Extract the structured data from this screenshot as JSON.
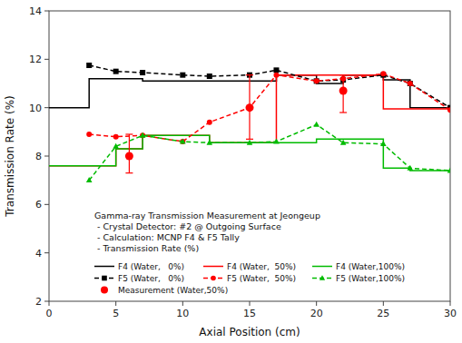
{
  "chart_data": {
    "type": "line",
    "xlabel": "Axial Position (cm)",
    "ylabel": "Transmission Rate (%)",
    "annotations": [
      "Gamma-ray Transmission Measurement at Jeongeup",
      " - Crystal Detector: #2 @ Outgoing Surface",
      " - Calculation: MCNP F4 & F5 Tally",
      " - Transmission Rate (%)"
    ],
    "xlim": [
      0,
      30
    ],
    "ylim": [
      2,
      14
    ],
    "xticks": [
      0,
      5,
      10,
      15,
      20,
      25,
      30
    ],
    "yticks": [
      2,
      4,
      6,
      8,
      10,
      12,
      14
    ],
    "grid": false,
    "legend": "lower left",
    "series": [
      {
        "name": "F4 (Water,   0%)",
        "color": "#000000",
        "line_style": "solid",
        "x": [
          0,
          3,
          3,
          7,
          7,
          12,
          12,
          17,
          17,
          20,
          20,
          22,
          22,
          25,
          25,
          27,
          27,
          30
        ],
        "values": [
          10.0,
          10.0,
          11.2,
          11.2,
          11.1,
          11.1,
          11.1,
          11.1,
          11.35,
          11.35,
          11.0,
          11.0,
          11.35,
          11.35,
          11.15,
          11.15,
          10.0,
          10.0
        ]
      },
      {
        "name": "F4 (Water,  50%)",
        "color": "#ff0000",
        "line_style": "solid",
        "x": [
          0,
          3,
          3,
          5,
          5,
          7,
          7,
          12,
          12,
          17,
          17,
          22,
          22,
          25,
          25,
          30
        ],
        "values": [
          7.6,
          7.6,
          7.6,
          7.6,
          8.3,
          8.3,
          8.85,
          8.85,
          8.55,
          8.55,
          11.35,
          11.35,
          11.35,
          11.35,
          9.95,
          9.95
        ]
      },
      {
        "name": "F4 (Water,100%)",
        "color": "#00bb00",
        "line_style": "solid",
        "x": [
          0,
          3,
          3,
          5,
          5,
          7,
          7,
          12,
          12,
          20,
          20,
          25,
          25,
          27,
          27,
          30
        ],
        "values": [
          7.6,
          7.6,
          7.6,
          7.6,
          8.3,
          8.3,
          8.85,
          8.85,
          8.55,
          8.55,
          8.7,
          8.7,
          7.5,
          7.5,
          7.4,
          7.4
        ]
      },
      {
        "name": "F5 (Water,   0%)",
        "color": "#000000",
        "line_style": "dashed",
        "marker": "square",
        "x": [
          3,
          5,
          7,
          10,
          12,
          15,
          17,
          20,
          22,
          25,
          27,
          30
        ],
        "values": [
          11.75,
          11.5,
          11.45,
          11.35,
          11.3,
          11.35,
          11.55,
          11.1,
          11.15,
          11.35,
          11.0,
          10.0
        ]
      },
      {
        "name": "F5 (Water,  50%)",
        "color": "#ff0000",
        "line_style": "dashed",
        "marker": "circle",
        "x": [
          3,
          5,
          7,
          10,
          12,
          15,
          17,
          20,
          22,
          25,
          27,
          30
        ],
        "values": [
          8.9,
          8.8,
          8.85,
          8.6,
          9.4,
          10.0,
          11.35,
          11.1,
          11.2,
          11.4,
          11.0,
          9.9
        ]
      },
      {
        "name": "F5 (Water,100%)",
        "color": "#00bb00",
        "line_style": "dashed",
        "marker": "triangle",
        "x": [
          3,
          5,
          7,
          10,
          12,
          15,
          17,
          20,
          22,
          25,
          27,
          30
        ],
        "values": [
          7.0,
          8.4,
          8.85,
          8.6,
          8.55,
          8.55,
          8.6,
          9.3,
          8.55,
          8.5,
          7.5,
          7.4
        ]
      },
      {
        "name": "Measurement (Water,50%)",
        "color": "#ff0000",
        "type": "scatter",
        "marker": "circle",
        "x": [
          6,
          15,
          22
        ],
        "values": [
          8.0,
          10.0,
          10.7
        ],
        "yerr_lo": [
          0.7,
          1.3,
          0.9
        ],
        "yerr_hi": [
          0.9,
          1.35,
          0.65
        ]
      }
    ]
  }
}
